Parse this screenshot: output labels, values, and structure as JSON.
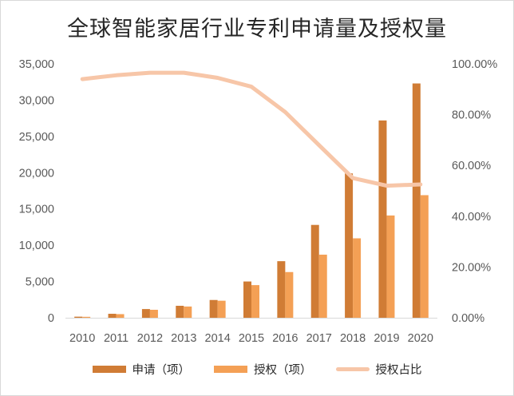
{
  "chart_data": {
    "type": "bar",
    "title": "全球智能家居行业专利申请量及授权量",
    "categories": [
      "2010",
      "2011",
      "2012",
      "2013",
      "2014",
      "2015",
      "2016",
      "2017",
      "2018",
      "2019",
      "2020"
    ],
    "series": [
      {
        "name": "申请（项）",
        "type": "bar",
        "axis": "left",
        "color": "#d07c35",
        "values": [
          150,
          550,
          1200,
          1650,
          2450,
          5000,
          7800,
          12800,
          19900,
          27200,
          32300
        ]
      },
      {
        "name": "授权（项）",
        "type": "bar",
        "axis": "left",
        "color": "#f4a055",
        "values": [
          130,
          500,
          1100,
          1550,
          2350,
          4500,
          6300,
          8700,
          10950,
          14100,
          16900
        ]
      },
      {
        "name": "授权占比",
        "type": "line",
        "axis": "right",
        "color": "#f7c6a8",
        "values": [
          0.94,
          0.955,
          0.965,
          0.965,
          0.945,
          0.91,
          0.81,
          0.68,
          0.55,
          0.52,
          0.525
        ]
      }
    ],
    "y_left": {
      "min": 0,
      "max": 35000,
      "step": 5000,
      "tick_labels": [
        "0",
        "5,000",
        "10,000",
        "15,000",
        "20,000",
        "25,000",
        "30,000",
        "35,000"
      ]
    },
    "y_right": {
      "min": 0,
      "max": 1,
      "step": 0.2,
      "tick_labels": [
        "0.00%",
        "20.00%",
        "40.00%",
        "60.00%",
        "80.00%",
        "100.00%"
      ]
    },
    "grid": false,
    "legend_position": "bottom"
  }
}
